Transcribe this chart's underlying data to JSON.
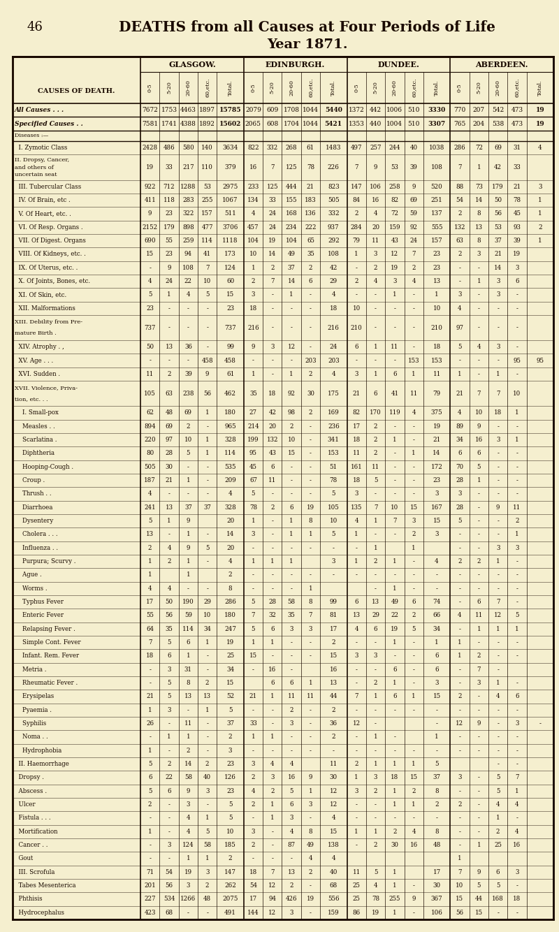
{
  "page_num": "46",
  "title1": "DEATHS from all Causes at Four Periods of Life",
  "title2": "Year 1871.",
  "city_headers": [
    "GLASGOW.",
    "EDINBURGH.",
    "DUNDEE.",
    "ABERDEEN."
  ],
  "age_headers": [
    "0-5",
    "5-20",
    "20-60",
    "60,etc.",
    "Total."
  ],
  "col_header": "CAUSES OF DEATH.",
  "rows": [
    [
      "All Causes . . .",
      "7672",
      "1753",
      "4463",
      "1897",
      "15785",
      "2079",
      "609",
      "1708",
      "1044",
      "5440",
      "1372",
      "442",
      "1006",
      "510",
      "3330",
      "770",
      "207",
      "542",
      "473",
      "19"
    ],
    [
      "Specified Causes . .",
      "7581",
      "1741",
      "4388",
      "1892",
      "15602",
      "2065",
      "608",
      "1704",
      "1044",
      "5421",
      "1353",
      "440",
      "1004",
      "510",
      "3307",
      "765",
      "204",
      "538",
      "473",
      "19"
    ],
    [
      "Diseases :—",
      "",
      "",
      "",
      "",
      "",
      "",
      "",
      "",
      "",
      "",
      "",
      "",
      "",
      "",
      "",
      "",
      "",
      "",
      "",
      ""
    ],
    [
      "  I. Zymotic Class",
      "2428",
      "486",
      "580",
      "140",
      "3634",
      "822",
      "332",
      "268",
      "61",
      "1483",
      "497",
      "257",
      "244",
      "40",
      "1038",
      "286",
      "72",
      "69",
      "31",
      "4"
    ],
    [
      "  II. Dropsy, Cancer,\n  and others of\n  uncertain seat",
      "19",
      "33",
      "217",
      "110",
      "379",
      "16",
      "7",
      "125",
      "78",
      "226",
      "7",
      "9",
      "53",
      "39",
      "108",
      "7",
      "1",
      "42",
      "33",
      ""
    ],
    [
      "  III. Tubercular Class",
      "922",
      "712",
      "1288",
      "53",
      "2975",
      "233",
      "125",
      "444",
      "21",
      "823",
      "147",
      "106",
      "258",
      "9",
      "520",
      "88",
      "73",
      "179",
      "21",
      "3"
    ],
    [
      "  IV. Of Brain, etc .",
      "411",
      "118",
      "283",
      "255",
      "1067",
      "134",
      "33",
      "155",
      "183",
      "505",
      "84",
      "16",
      "82",
      "69",
      "251",
      "54",
      "14",
      "50",
      "78",
      "1"
    ],
    [
      "  V. Of Heart, etc. .",
      "9",
      "23",
      "322",
      "157",
      "511",
      "4",
      "24",
      "168",
      "136",
      "332",
      "2",
      "4",
      "72",
      "59",
      "137",
      "2",
      "8",
      "56",
      "45",
      "1"
    ],
    [
      "  VI. Of Resp. Organs .",
      "2152",
      "179",
      "898",
      "477",
      "3706",
      "457",
      "24",
      "234",
      "222",
      "937",
      "284",
      "20",
      "159",
      "92",
      "555",
      "132",
      "13",
      "53",
      "93",
      "2"
    ],
    [
      "  VII. Of Digest. Organs",
      "690",
      "55",
      "259",
      "114",
      "1118",
      "104",
      "19",
      "104",
      "65",
      "292",
      "79",
      "11",
      "43",
      "24",
      "157",
      "63",
      "8",
      "37",
      "39",
      "1"
    ],
    [
      "  VIII. Of Kidneys, etc. .",
      "15",
      "23",
      "94",
      "41",
      "173",
      "10",
      "14",
      "49",
      "35",
      "108",
      "1",
      "3",
      "12",
      "7",
      "23",
      "2",
      "3",
      "21",
      "19",
      ""
    ],
    [
      "  IX. Of Uterus, etc. .",
      "-",
      "9",
      "108",
      "7",
      "124",
      "1",
      "2",
      "37",
      "2",
      "42",
      "-",
      "2",
      "19",
      "2",
      "23",
      "-",
      "-",
      "14",
      "3",
      ""
    ],
    [
      "  X. Of Joints, Bones, etc.",
      "4",
      "24",
      "22",
      "10",
      "60",
      "2",
      "7",
      "14",
      "6",
      "29",
      "2",
      "4",
      "3",
      "4",
      "13",
      "-",
      "1",
      "3",
      "6",
      ""
    ],
    [
      "  XI. Of Skin, etc.",
      "5",
      "1",
      "4",
      "5",
      "15",
      "3",
      "-",
      "1",
      "-",
      "4",
      "-",
      "-",
      "1",
      "-",
      "1",
      "3",
      "-",
      "3",
      "-",
      ""
    ],
    [
      "  XII. Malformations",
      "23",
      "-",
      "-",
      "-",
      "23",
      "18",
      "-",
      "-",
      "-",
      "18",
      "10",
      "-",
      "-",
      "-",
      "10",
      "4",
      "-",
      "-",
      "-",
      ""
    ],
    [
      "  XIII. Debility from Pre-\n  mature Birth .",
      "737",
      "-",
      "-",
      "-",
      "737",
      "216",
      "-",
      "-",
      "-",
      "216",
      "210",
      "-",
      "-",
      "-",
      "210",
      "97",
      "-",
      "-",
      "-",
      ""
    ],
    [
      "  XIV. Atrophy . ,",
      "50",
      "13",
      "36",
      "-",
      "99",
      "9",
      "3",
      "12",
      "-",
      "24",
      "6",
      "1",
      "11",
      "-",
      "18",
      "5",
      "4",
      "3",
      "-",
      ""
    ],
    [
      "  XV. Age . . .",
      "-",
      "-",
      "-",
      "458",
      "458",
      "-",
      "-",
      "-",
      "203",
      "203",
      "-",
      "-",
      "-",
      "153",
      "153",
      "-",
      "-",
      "-",
      "95",
      "95"
    ],
    [
      "  XVI. Sudden .",
      "11",
      "2",
      "39",
      "9",
      "61",
      "1",
      "-",
      "1",
      "2",
      "4",
      "3",
      "1",
      "6",
      "1",
      "11",
      "1",
      "-",
      "1",
      "-",
      ""
    ],
    [
      "  XVII. Violence, Priva-\n  tion, etc. . .",
      "105",
      "63",
      "238",
      "56",
      "462",
      "35",
      "18",
      "92",
      "30",
      "175",
      "21",
      "6",
      "41",
      "11",
      "79",
      "21",
      "7",
      "7",
      "10",
      ""
    ],
    [
      "    I. Small-pox",
      "62",
      "48",
      "69",
      "1",
      "180",
      "27",
      "42",
      "98",
      "2",
      "169",
      "82",
      "170",
      "119",
      "4",
      "375",
      "4",
      "10",
      "18",
      "1",
      ""
    ],
    [
      "    Measles . .",
      "894",
      "69",
      "2",
      "-",
      "965",
      "214",
      "20",
      "2",
      "-",
      "236",
      "17",
      "2",
      "-",
      "-",
      "19",
      "89",
      "9",
      "-",
      "-",
      ""
    ],
    [
      "    Scarlatina .",
      "220",
      "97",
      "10",
      "1",
      "328",
      "199",
      "132",
      "10",
      "-",
      "341",
      "18",
      "2",
      "1",
      "-",
      "21",
      "34",
      "16",
      "3",
      "1",
      ""
    ],
    [
      "    Diphtheria",
      "80",
      "28",
      "5",
      "1",
      "114",
      "95",
      "43",
      "15",
      "-",
      "153",
      "11",
      "2",
      "-",
      "1",
      "14",
      "6",
      "6",
      "-",
      "-",
      ""
    ],
    [
      "    Hooping-Cough .",
      "505",
      "30",
      "-",
      "-",
      "535",
      "45",
      "6",
      "-",
      "-",
      "51",
      "161",
      "11",
      "-",
      "-",
      "172",
      "70",
      "5",
      "-",
      "-",
      ""
    ],
    [
      "    Croup .",
      "187",
      "21",
      "1",
      "-",
      "209",
      "67",
      "11",
      "-",
      "-",
      "78",
      "18",
      "5",
      "-",
      "-",
      "23",
      "28",
      "1",
      "-",
      "-",
      ""
    ],
    [
      "    Thrush . .",
      "4",
      "-",
      "-",
      "-",
      "4",
      "5",
      "-",
      "-",
      "-",
      "5",
      "3",
      "-",
      "-",
      "-",
      "3",
      "3",
      "-",
      "-",
      "-",
      ""
    ],
    [
      "    Diarrhoea",
      "241",
      "13",
      "37",
      "37",
      "328",
      "78",
      "2",
      "6",
      "19",
      "105",
      "135",
      "7",
      "10",
      "15",
      "167",
      "28",
      "-",
      "9",
      "11",
      ""
    ],
    [
      "    Dysentery",
      "5",
      "1",
      "9",
      "",
      "20",
      "1",
      "-",
      "1",
      "8",
      "10",
      "4",
      "1",
      "7",
      "3",
      "15",
      "5",
      "-",
      "-",
      "2",
      ""
    ],
    [
      "    Cholera . . .",
      "13",
      "-",
      "1",
      "-",
      "14",
      "3",
      "-",
      "1",
      "1",
      "5",
      "1",
      "-",
      "-",
      "2",
      "3",
      "-",
      "-",
      "-",
      "1",
      ""
    ],
    [
      "    Influenza . .",
      "2",
      "4",
      "9",
      "5",
      "20",
      "-",
      "-",
      "-",
      "-",
      "-",
      "-",
      "1",
      "",
      "1",
      "",
      "-",
      "-",
      "3",
      "3",
      ""
    ],
    [
      "    Purpura; Scurvy .",
      "1",
      "2",
      "1",
      "-",
      "4",
      "1",
      "1",
      "1",
      "",
      "3",
      "1",
      "2",
      "1",
      "-",
      "4",
      "2",
      "2",
      "1",
      "-",
      ""
    ],
    [
      "    Ague .",
      "1",
      "",
      "1",
      "",
      "2",
      "-",
      "-",
      "-",
      "-",
      "-",
      "-",
      "-",
      "-",
      "-",
      "-",
      "-",
      "-",
      "-",
      "-",
      ""
    ],
    [
      "    Worms .",
      "4",
      "4",
      "-",
      "-",
      "8",
      "-",
      "-",
      "-",
      "1",
      "",
      "",
      "-",
      "1",
      "-",
      "-",
      "-",
      "-",
      "-",
      "-",
      ""
    ],
    [
      "    Typhus Fever",
      "17",
      "50",
      "190",
      "29",
      "286",
      "5",
      "28",
      "58",
      "8",
      "99",
      "6",
      "13",
      "49",
      "6",
      "74",
      "-",
      "6",
      "7",
      "-",
      ""
    ],
    [
      "    Enteric Fever",
      "55",
      "56",
      "59",
      "10",
      "180",
      "7",
      "32",
      "35",
      "7",
      "81",
      "13",
      "29",
      "22",
      "2",
      "66",
      "4",
      "11",
      "12",
      "5",
      ""
    ],
    [
      "    Relapsing Fever .",
      "64",
      "35",
      "114",
      "34",
      "247",
      "5",
      "6",
      "3",
      "3",
      "17",
      "4",
      "6",
      "19",
      "5",
      "34",
      "-",
      "1",
      "1",
      "1",
      ""
    ],
    [
      "    Simple Cont. Fever",
      "7",
      "5",
      "6",
      "1",
      "19",
      "1",
      "1",
      "-",
      "-",
      "2",
      "-",
      "-",
      "1",
      "-",
      "1",
      "1",
      "-",
      "-",
      "-",
      ""
    ],
    [
      "    Infant. Rem. Fever",
      "18",
      "6",
      "1",
      "-",
      "25",
      "15",
      "-",
      "-",
      "-",
      "15",
      "3",
      "3",
      "-",
      "-",
      "6",
      "1",
      "2",
      "-",
      "-",
      ""
    ],
    [
      "    Metria .",
      "-",
      "3",
      "31",
      "-",
      "34",
      "-",
      "16",
      "-",
      "",
      "16",
      "-",
      "-",
      "6",
      "-",
      "6",
      "-",
      "7",
      "-",
      "",
      ""
    ],
    [
      "    Rheumatic Fever .",
      "-",
      "5",
      "8",
      "2",
      "15",
      "",
      "6",
      "6",
      "1",
      "13",
      "-",
      "2",
      "1",
      "-",
      "3",
      "-",
      "3",
      "1",
      "-",
      ""
    ],
    [
      "    Erysipelas",
      "21",
      "5",
      "13",
      "13",
      "52",
      "21",
      "1",
      "11",
      "11",
      "44",
      "7",
      "1",
      "6",
      "1",
      "15",
      "2",
      "-",
      "4",
      "6",
      ""
    ],
    [
      "    Pyaemia .",
      "1",
      "3",
      "-",
      "1",
      "5",
      "-",
      "-",
      "2",
      "-",
      "2",
      "-",
      "-",
      "-",
      "-",
      "-",
      "-",
      "-",
      "-",
      "-",
      ""
    ],
    [
      "    Syphilis",
      "26",
      "-",
      "11",
      "-",
      "37",
      "33",
      "-",
      "3",
      "-",
      "36",
      "12",
      "-",
      "",
      "",
      "-",
      "12",
      "9",
      "-",
      "3",
      "-",
      ""
    ],
    [
      "    Noma . .",
      "-",
      "1",
      "1",
      "-",
      "2",
      "1",
      "1",
      "-",
      "-",
      "2",
      "-",
      "1",
      "-",
      "",
      "1",
      "-",
      "-",
      "-",
      "-",
      ""
    ],
    [
      "    Hydrophobia",
      "1",
      "-",
      "2",
      "-",
      "3",
      "-",
      "-",
      "-",
      "-",
      "-",
      "-",
      "-",
      "-",
      "-",
      "-",
      "-",
      "-",
      "-",
      "-",
      ""
    ],
    [
      "  II. Haemorrhage",
      "5",
      "2",
      "14",
      "2",
      "23",
      "3",
      "4",
      "4",
      "",
      "11",
      "2",
      "1",
      "1",
      "1",
      "5",
      "",
      "",
      "-",
      "-",
      ""
    ],
    [
      "  Dropsy .",
      "6",
      "22",
      "58",
      "40",
      "126",
      "2",
      "3",
      "16",
      "9",
      "30",
      "1",
      "3",
      "18",
      "15",
      "37",
      "3",
      "-",
      "5",
      "7",
      ""
    ],
    [
      "  Abscess .",
      "5",
      "6",
      "9",
      "3",
      "23",
      "4",
      "2",
      "5",
      "1",
      "12",
      "3",
      "2",
      "1",
      "2",
      "8",
      "-",
      "-",
      "5",
      "1",
      ""
    ],
    [
      "  Ulcer",
      "2",
      "-",
      "3",
      "-",
      "5",
      "2",
      "1",
      "6",
      "3",
      "12",
      "-",
      "-",
      "1",
      "1",
      "2",
      "2",
      "-",
      "4",
      "4",
      ""
    ],
    [
      "  Fistula . . .",
      "-",
      "-",
      "4",
      "1",
      "5",
      "-",
      "1",
      "3",
      "-",
      "4",
      "-",
      "-",
      "-",
      "-",
      "-",
      "-",
      "-",
      "1",
      "-",
      ""
    ],
    [
      "  Mortification",
      "1",
      "-",
      "4",
      "5",
      "10",
      "3",
      "-",
      "4",
      "8",
      "15",
      "1",
      "1",
      "2",
      "4",
      "8",
      "-",
      "-",
      "2",
      "4",
      ""
    ],
    [
      "  Cancer . .",
      "-",
      "3",
      "124",
      "58",
      "185",
      "2",
      "-",
      "87",
      "49",
      "138",
      "-",
      "2",
      "30",
      "16",
      "48",
      "-",
      "1",
      "25",
      "16",
      ""
    ],
    [
      "  Gout",
      "-",
      "-",
      "1",
      "1",
      "2",
      "-",
      "-",
      "-",
      "4",
      "4",
      "",
      "",
      "",
      "",
      "",
      "1",
      "",
      "",
      "",
      ""
    ],
    [
      "  III. Scrofula",
      "71",
      "54",
      "19",
      "3",
      "147",
      "18",
      "7",
      "13",
      "2",
      "40",
      "11",
      "5",
      "1",
      "",
      "17",
      "7",
      "9",
      "6",
      "3",
      ""
    ],
    [
      "  Tabes Mesenterica",
      "201",
      "56",
      "3",
      "2",
      "262",
      "54",
      "12",
      "2",
      "-",
      "68",
      "25",
      "4",
      "1",
      "-",
      "30",
      "10",
      "5",
      "5",
      "-",
      ""
    ],
    [
      "  Phthisis",
      "227",
      "534",
      "1266",
      "48",
      "2075",
      "17",
      "94",
      "426",
      "19",
      "556",
      "25",
      "78",
      "255",
      "9",
      "367",
      "15",
      "44",
      "168",
      "18",
      ""
    ],
    [
      "  Hydrocephalus",
      "423",
      "68",
      "-",
      "-",
      "491",
      "144",
      "12",
      "3",
      "-",
      "159",
      "86",
      "19",
      "1",
      "-",
      "106",
      "56",
      "15",
      "-",
      "-",
      ""
    ]
  ],
  "bg_color": "#f5efcf",
  "text_color": "#1a0a00",
  "line_color": "#1a0a00"
}
